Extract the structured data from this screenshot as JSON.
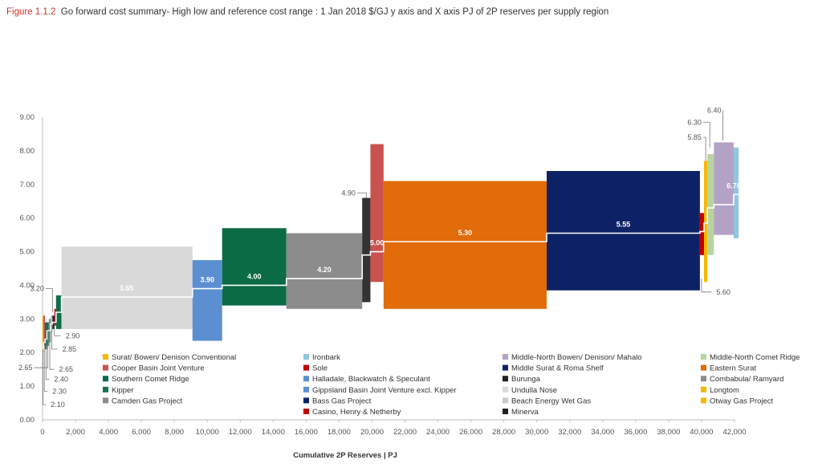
{
  "figure": {
    "number": "Figure 1.1.2",
    "caption": "Go forward cost summary- High low and reference cost range : 1 Jan 2018 $/GJ y axis and X axis PJ of 2P reserves per supply region"
  },
  "chart_data": {
    "type": "bar",
    "subtype": "variable-width cost curve with low/high range boxes and reference cost step line",
    "title": "Go forward cost summary- High low and reference cost range : 1 Jan 2018 $/GJ y axis and X axis PJ of 2P reserves per supply region",
    "xlabel": "Cumulative 2P Reserves | PJ",
    "ylabel": "",
    "xlim": [
      0,
      42000
    ],
    "ylim": [
      0,
      9
    ],
    "x_ticks": [
      "0",
      "2,000",
      "4,000",
      "6,000",
      "8,000",
      "10,000",
      "12,000",
      "14,000",
      "16,000",
      "18,000",
      "20,000",
      "22,000",
      "24,000",
      "26,000",
      "28,000",
      "30,000",
      "32,000",
      "34,000",
      "36,000",
      "38,000",
      "40,000",
      "42,000"
    ],
    "x_tick_values": [
      0,
      2000,
      4000,
      6000,
      8000,
      10000,
      12000,
      14000,
      16000,
      18000,
      20000,
      22000,
      24000,
      26000,
      28000,
      30000,
      32000,
      34000,
      36000,
      38000,
      40000,
      42000
    ],
    "y_ticks": [
      "0.00",
      "1.00",
      "2.00",
      "3.00",
      "4.00",
      "5.00",
      "6.00",
      "7.00",
      "8.00",
      "9.00"
    ],
    "y_tick_values": [
      0,
      1,
      2,
      3,
      4,
      5,
      6,
      7,
      8,
      9
    ],
    "grid": "none",
    "legend_placement": "bottom-inside",
    "reference_line_color": "#ffffff",
    "series": [
      {
        "name": "Surat/ Bowen/ Denison Conventional",
        "color": "#f5b800",
        "x0": 0,
        "x1": 60,
        "low": 2.0,
        "high": 3.1,
        "ref": 2.1
      },
      {
        "name": "Cooper Basin Joint Venture",
        "color": "#c9524f",
        "x0": 60,
        "x1": 150,
        "low": 2.2,
        "high": 3.1,
        "ref": 2.3
      },
      {
        "name": "Southern Comet Ridge",
        "color": "#0b6b45",
        "x0": 150,
        "x1": 270,
        "low": 2.1,
        "high": 2.9,
        "ref": 2.4
      },
      {
        "name": "Kipper",
        "color": "#17734d",
        "x0": 270,
        "x1": 380,
        "low": 2.2,
        "high": 2.9,
        "ref": 2.65
      },
      {
        "name": "Camden Gas Project",
        "color": "#8c8c8c",
        "x0": 380,
        "x1": 500,
        "low": 2.3,
        "high": 3.0,
        "ref": 2.65
      },
      {
        "name": "Ironbark",
        "color": "#92c5de",
        "x0": 500,
        "x1": 600,
        "low": 2.6,
        "high": 3.1,
        "ref": 2.85
      },
      {
        "name": "Minerva",
        "color": "#222222",
        "x0": 600,
        "x1": 720,
        "low": 2.7,
        "high": 3.1,
        "ref": 2.9
      },
      {
        "name": "Sole",
        "color": "#c00000",
        "x0": 720,
        "x1": 820,
        "low": 2.8,
        "high": 3.3,
        "ref": 2.9
      },
      {
        "name": "Gippsland Basin Joint Venture excl. Kipper",
        "color": "#0f6e48",
        "x0": 820,
        "x1": 1150,
        "low": 2.7,
        "high": 3.7,
        "ref": 3.2
      },
      {
        "name": "Undulla Nose",
        "color": "#d9d9d9",
        "x0": 1150,
        "x1": 9100,
        "low": 2.7,
        "high": 5.15,
        "ref": 3.65
      },
      {
        "name": "Halladale, Blackwatch & Speculant",
        "color": "#5b8fd1",
        "x0": 9100,
        "x1": 10900,
        "low": 2.35,
        "high": 4.75,
        "ref": 3.9
      },
      {
        "name": "Bass Gas Project",
        "color": "#0b6b45",
        "x0": 10900,
        "x1": 14800,
        "low": 3.4,
        "high": 5.7,
        "ref": 4.0
      },
      {
        "name": "Combabula/ Ramyard",
        "color": "#8c8c8c",
        "x0": 14800,
        "x1": 19400,
        "low": 3.3,
        "high": 5.55,
        "ref": 4.2
      },
      {
        "name": "Burunga",
        "color": "#333333",
        "x0": 19400,
        "x1": 19900,
        "low": 3.5,
        "high": 6.6,
        "ref": 4.9
      },
      {
        "name": "Middle-North Bowen/ Denison/ Mahalo",
        "color": "#c9524f",
        "x0": 19900,
        "x1": 20700,
        "low": 4.1,
        "high": 8.2,
        "ref": 5.0
      },
      {
        "name": "Eastern Surat",
        "color": "#e26b0a",
        "x0": 20700,
        "x1": 30600,
        "low": 3.3,
        "high": 7.1,
        "ref": 5.3
      },
      {
        "name": "Middle Surat & Roma Shelf",
        "color": "#0d2266",
        "x0": 30600,
        "x1": 39900,
        "low": 3.85,
        "high": 7.4,
        "ref": 5.55
      },
      {
        "name": "Casino, Henry & Netherby",
        "color": "#c00000",
        "x0": 39900,
        "x1": 40150,
        "low": 4.9,
        "high": 6.15,
        "ref": 5.6
      },
      {
        "name": "Longtom",
        "color": "#f5b800",
        "x0": 40150,
        "x1": 40350,
        "low": 4.1,
        "high": 7.7,
        "ref": 5.85
      },
      {
        "name": "Middle-North Comet Ridge",
        "color": "#b8d4a0",
        "x0": 40350,
        "x1": 40750,
        "low": 4.9,
        "high": 7.9,
        "ref": 6.3
      },
      {
        "name": "Beach Energy Wet Gas",
        "color": "#b4a2c6",
        "x0": 40750,
        "x1": 41950,
        "low": 5.5,
        "high": 8.25,
        "ref": 6.4
      },
      {
        "name": "Otway Gas Project",
        "color": "#92c5de",
        "x0": 41950,
        "x1": 42250,
        "low": 5.4,
        "high": 8.1,
        "ref": 6.7
      }
    ],
    "inline_labels": [
      {
        "text": "3.65",
        "x": 5100,
        "y": 3.65
      },
      {
        "text": "3.90",
        "x": 10000,
        "y": 3.9
      },
      {
        "text": "4.00",
        "x": 12850,
        "y": 4.0
      },
      {
        "text": "4.20",
        "x": 17100,
        "y": 4.2
      },
      {
        "text": "5.00",
        "x": 20300,
        "y": 5.0
      },
      {
        "text": "5.30",
        "x": 25650,
        "y": 5.3
      },
      {
        "text": "5.55",
        "x": 35250,
        "y": 5.55
      },
      {
        "text": "6.70",
        "x": 41950,
        "y": 6.7
      }
    ],
    "annotations": [
      {
        "text": "3.20",
        "x": 600,
        "y": 3.2,
        "tx": -100,
        "ty": 3.9
      },
      {
        "text": "2.90",
        "x": 720,
        "y": 2.9,
        "tx": 1400,
        "ty": 2.5
      },
      {
        "text": "2.85",
        "x": 560,
        "y": 2.85,
        "tx": 1200,
        "ty": 2.1
      },
      {
        "text": "2.65",
        "x": 440,
        "y": 2.65,
        "tx": 1000,
        "ty": 1.5
      },
      {
        "text": "2.65",
        "x": 320,
        "y": 2.65,
        "tx": -800,
        "ty": 1.55
      },
      {
        "text": "2.40",
        "x": 210,
        "y": 2.4,
        "tx": 700,
        "ty": 1.2
      },
      {
        "text": "2.30",
        "x": 110,
        "y": 2.3,
        "tx": 600,
        "ty": 0.85
      },
      {
        "text": "2.10",
        "x": 30,
        "y": 2.1,
        "tx": 500,
        "ty": 0.45
      },
      {
        "text": "4.90",
        "x": 19650,
        "y": 6.6,
        "tx": 18800,
        "ty": 6.75
      },
      {
        "text": "5.60",
        "x": 40000,
        "y": 4.2,
        "tx": 40900,
        "ty": 3.8
      },
      {
        "text": "5.85",
        "x": 40250,
        "y": 7.7,
        "tx": 39800,
        "ty": 8.4
      },
      {
        "text": "6.30",
        "x": 40500,
        "y": 8.1,
        "tx": 39800,
        "ty": 8.85
      },
      {
        "text": "6.40",
        "x": 41300,
        "y": 8.3,
        "tx": 41000,
        "ty": 9.2
      }
    ]
  },
  "legend": {
    "columns": [
      [
        {
          "label": "Surat/ Bowen/ Denison Conventional",
          "color": "#f5b800"
        },
        {
          "label": "Cooper Basin Joint Venture",
          "color": "#c9524f"
        },
        {
          "label": "Southern Comet Ridge",
          "color": "#0b6b45"
        },
        {
          "label": "Kipper",
          "color": "#17734d"
        },
        {
          "label": "Camden Gas Project",
          "color": "#8c8c8c"
        }
      ],
      [
        {
          "label": "Ironbark",
          "color": "#92c5de"
        },
        {
          "label": "Sole",
          "color": "#c00000"
        },
        {
          "label": "Halladale, Blackwatch & Speculant",
          "color": "#5b8fd1"
        },
        {
          "label": "Gippsland Basin Joint Venture excl. Kipper",
          "color": "#5b8fd1"
        },
        {
          "label": "Bass Gas Project",
          "color": "#0d2266"
        },
        {
          "label": "Casino, Henry & Netherby",
          "color": "#c00000"
        }
      ],
      [
        {
          "label": "Middle-North Bowen/ Denison/ Mahalo",
          "color": "#b4a2c6"
        },
        {
          "label": "Middle Surat & Roma Shelf",
          "color": "#0d2266"
        },
        {
          "label": "Burunga",
          "color": "#222222"
        },
        {
          "label": "Undulla Nose",
          "color": "#d9d9d9"
        },
        {
          "label": "Beach Energy Wet Gas",
          "color": "#c8c8c8"
        },
        {
          "label": "Minerva",
          "color": "#222222"
        }
      ],
      [
        {
          "label": "Middle-North Comet Ridge",
          "color": "#b8d4a0"
        },
        {
          "label": "Eastern Surat",
          "color": "#e26b0a"
        },
        {
          "label": "Combabula/ Ramyard",
          "color": "#8c8c8c"
        },
        {
          "label": "Longtom",
          "color": "#f5b800"
        },
        {
          "label": "Otway Gas Project",
          "color": "#f5b800"
        }
      ]
    ]
  }
}
